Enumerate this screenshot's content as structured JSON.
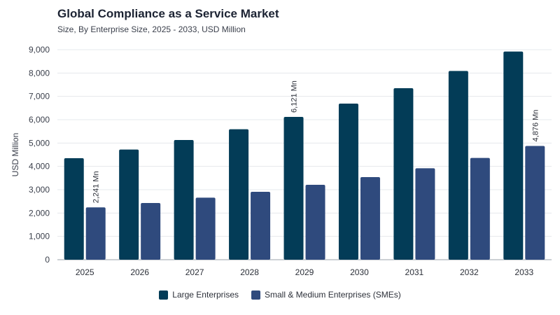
{
  "chart_data": {
    "type": "bar",
    "title": "Global Compliance as a Service Market",
    "subtitle": "Size, By Enterprise Size, 2025 - 2033, USD Million",
    "xlabel": "",
    "ylabel": "USD Million",
    "ylim": [
      0,
      9000
    ],
    "yticks": [
      0,
      1000,
      2000,
      3000,
      4000,
      5000,
      6000,
      7000,
      8000,
      9000
    ],
    "ytick_labels": [
      "0",
      "1,000",
      "2,000",
      "3,000",
      "4,000",
      "5,000",
      "6,000",
      "7,000",
      "8,000",
      "9,000"
    ],
    "categories": [
      "2025",
      "2026",
      "2027",
      "2028",
      "2029",
      "2030",
      "2031",
      "2032",
      "2033"
    ],
    "series": [
      {
        "name": "Large Enterprises",
        "color": "#033c57",
        "values": [
          4350,
          4720,
          5130,
          5590,
          6121,
          6690,
          7350,
          8090,
          8920
        ]
      },
      {
        "name": "Small & Medium Enterprises (SMEs)",
        "color": "#2f4a7d",
        "values": [
          2241,
          2430,
          2660,
          2910,
          3210,
          3540,
          3920,
          4360,
          4876
        ]
      }
    ],
    "annotations": [
      {
        "series": 1,
        "index": 0,
        "text": "2,241 Mn"
      },
      {
        "series": 0,
        "index": 4,
        "text": "6,121 Mn"
      },
      {
        "series": 1,
        "index": 8,
        "text": "4,876 Mn"
      }
    ],
    "grid": true,
    "legend_position": "bottom"
  }
}
